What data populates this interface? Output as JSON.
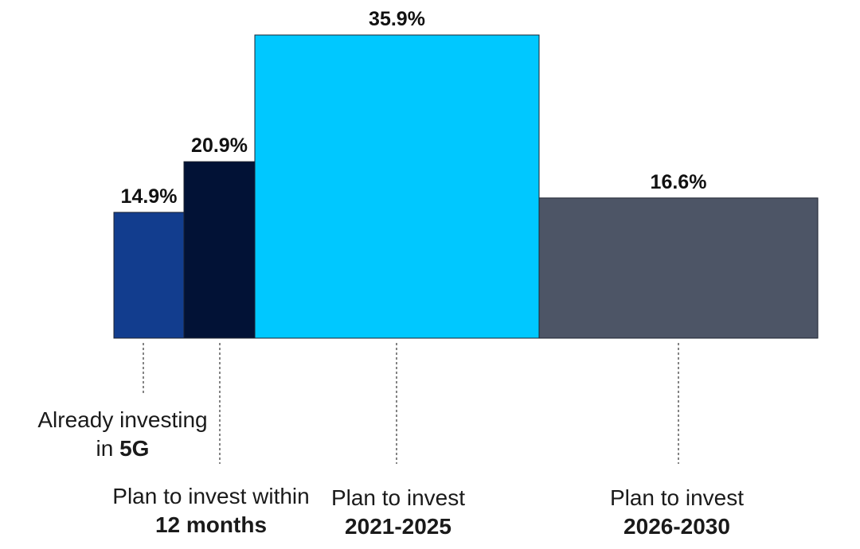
{
  "chart_data": {
    "type": "bar",
    "categories": [
      "Already investing in 5G",
      "Plan to invest within 12 months",
      "Plan to invest 2021-2025",
      "Plan to invest 2026-2030"
    ],
    "category_labels": [
      {
        "line1": "Already investing",
        "line2_prefix": "in ",
        "line2_bold": "5G"
      },
      {
        "line1": "Plan to invest within",
        "line2_prefix": "",
        "line2_bold": "12 months"
      },
      {
        "line1": "Plan to invest",
        "line2_prefix": "",
        "line2_bold": "2021-2025"
      },
      {
        "line1": "Plan to invest",
        "line2_prefix": "",
        "line2_bold": "2026-2030"
      }
    ],
    "values": [
      14.9,
      20.9,
      35.9,
      16.6
    ],
    "value_labels": [
      "14.9%",
      "20.9%",
      "35.9%",
      "16.6%"
    ],
    "colors": [
      "#123d8e",
      "#021236",
      "#00c8ff",
      "#4d5566"
    ],
    "ylim": [
      0,
      35.9
    ],
    "grid": false,
    "title": "",
    "xlabel": "",
    "ylabel": ""
  }
}
